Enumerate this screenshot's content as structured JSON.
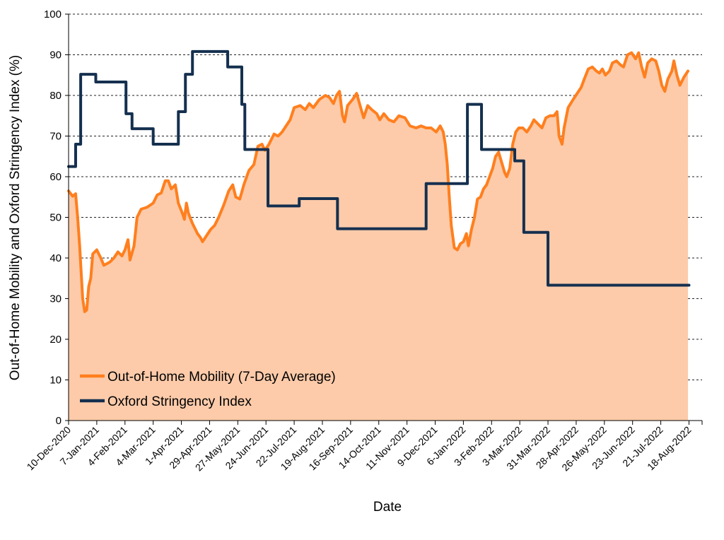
{
  "chart_data": {
    "type": "line",
    "xlabel": "Date",
    "ylabel": "Out-of-Home Mobility and Oxford Stringency Index (%)",
    "ylim": [
      0,
      100
    ],
    "yticks": [
      0,
      10,
      20,
      30,
      40,
      50,
      60,
      70,
      80,
      90,
      100
    ],
    "xlim": [
      "2020-12-10",
      "2022-08-31"
    ],
    "x_tick_labels": [
      "10-Dec-2020",
      "7-Jan-2021",
      "4-Feb-2021",
      "4-Mar-2021",
      "1-Apr-2021",
      "29-Apr-2021",
      "27-May-2021",
      "24-Jun-2021",
      "22-Jul-2021",
      "19-Aug-2021",
      "16-Sep-2021",
      "14-Oct-2021",
      "11-Nov-2021",
      "9-Dec-2021",
      "6-Jan-2022",
      "3-Feb-2022",
      "3-Mar-2022",
      "31-Mar-2022",
      "28-Apr-2022",
      "26-May-2022",
      "23-Jun-2022",
      "21-Jul-2022",
      "18-Aug-2022"
    ],
    "grid": "horizontal",
    "legend_position": "bottom-left",
    "series": [
      {
        "name": "Out-of-Home Mobility (7-Day Average)",
        "style": "filled-area",
        "color": "#FF7F1E",
        "fill": "#FDCBAA",
        "points": [
          [
            "2020-12-10",
            56.5
          ],
          [
            "2020-12-14",
            55.2
          ],
          [
            "2020-12-17",
            55.8
          ],
          [
            "2020-12-19",
            50
          ],
          [
            "2020-12-21",
            43
          ],
          [
            "2020-12-24",
            30
          ],
          [
            "2020-12-26",
            26.8
          ],
          [
            "2020-12-28",
            27.2
          ],
          [
            "2020-12-30",
            33
          ],
          [
            "2021-01-01",
            35
          ],
          [
            "2021-01-03",
            41
          ],
          [
            "2021-01-07",
            42
          ],
          [
            "2021-01-11",
            40
          ],
          [
            "2021-01-14",
            38.2
          ],
          [
            "2021-01-20",
            39
          ],
          [
            "2021-01-24",
            40
          ],
          [
            "2021-01-28",
            41.5
          ],
          [
            "2021-02-01",
            40.5
          ],
          [
            "2021-02-04",
            42
          ],
          [
            "2021-02-07",
            44.5
          ],
          [
            "2021-02-09",
            39.5
          ],
          [
            "2021-02-13",
            43
          ],
          [
            "2021-02-16",
            50
          ],
          [
            "2021-02-20",
            52
          ],
          [
            "2021-02-26",
            52.5
          ],
          [
            "2021-03-04",
            53.5
          ],
          [
            "2021-03-08",
            55.5
          ],
          [
            "2021-03-12",
            56
          ],
          [
            "2021-03-16",
            59
          ],
          [
            "2021-03-19",
            59
          ],
          [
            "2021-03-22",
            57
          ],
          [
            "2021-03-26",
            58
          ],
          [
            "2021-03-29",
            53.5
          ],
          [
            "2021-04-02",
            51
          ],
          [
            "2021-04-04",
            49.5
          ],
          [
            "2021-04-06",
            53.5
          ],
          [
            "2021-04-08",
            51
          ],
          [
            "2021-04-12",
            48.5
          ],
          [
            "2021-04-17",
            46
          ],
          [
            "2021-04-20",
            45
          ],
          [
            "2021-04-22",
            44
          ],
          [
            "2021-04-26",
            45.5
          ],
          [
            "2021-04-30",
            47
          ],
          [
            "2021-05-04",
            48
          ],
          [
            "2021-05-08",
            50
          ],
          [
            "2021-05-13",
            53
          ],
          [
            "2021-05-18",
            56.5
          ],
          [
            "2021-05-22",
            58
          ],
          [
            "2021-05-25",
            55
          ],
          [
            "2021-05-29",
            54.5
          ],
          [
            "2021-06-02",
            58
          ],
          [
            "2021-06-07",
            61.5
          ],
          [
            "2021-06-12",
            63
          ],
          [
            "2021-06-16",
            67.5
          ],
          [
            "2021-06-20",
            68
          ],
          [
            "2021-06-23",
            66.5
          ],
          [
            "2021-06-27",
            68
          ],
          [
            "2021-07-02",
            70.5
          ],
          [
            "2021-07-06",
            70
          ],
          [
            "2021-07-10",
            71
          ],
          [
            "2021-07-14",
            72.5
          ],
          [
            "2021-07-18",
            74
          ],
          [
            "2021-07-22",
            77
          ],
          [
            "2021-07-28",
            77.5
          ],
          [
            "2021-08-02",
            76.5
          ],
          [
            "2021-08-06",
            78
          ],
          [
            "2021-08-10",
            77
          ],
          [
            "2021-08-16",
            79
          ],
          [
            "2021-08-22",
            80
          ],
          [
            "2021-08-26",
            79.5
          ],
          [
            "2021-08-30",
            78
          ],
          [
            "2021-09-02",
            80
          ],
          [
            "2021-09-05",
            81
          ],
          [
            "2021-09-08",
            75
          ],
          [
            "2021-09-10",
            73.5
          ],
          [
            "2021-09-13",
            77.5
          ],
          [
            "2021-09-18",
            79
          ],
          [
            "2021-09-22",
            80.5
          ],
          [
            "2021-09-26",
            77
          ],
          [
            "2021-09-29",
            74.5
          ],
          [
            "2021-10-03",
            77.5
          ],
          [
            "2021-10-07",
            76.5
          ],
          [
            "2021-10-12",
            75.5
          ],
          [
            "2021-10-15",
            74
          ],
          [
            "2021-10-19",
            75.5
          ],
          [
            "2021-10-24",
            74
          ],
          [
            "2021-10-29",
            73.5
          ],
          [
            "2021-11-03",
            75
          ],
          [
            "2021-11-09",
            74.5
          ],
          [
            "2021-11-14",
            72.5
          ],
          [
            "2021-11-20",
            72
          ],
          [
            "2021-11-25",
            72.5
          ],
          [
            "2021-11-30",
            72
          ],
          [
            "2021-12-05",
            72
          ],
          [
            "2021-12-10",
            71
          ],
          [
            "2021-12-14",
            72.5
          ],
          [
            "2021-12-17",
            71
          ],
          [
            "2021-12-19",
            68
          ],
          [
            "2021-12-21",
            63
          ],
          [
            "2021-12-23",
            55
          ],
          [
            "2021-12-25",
            48
          ],
          [
            "2021-12-28",
            42.5
          ],
          [
            "2021-12-31",
            42
          ],
          [
            "2022-01-03",
            43.5
          ],
          [
            "2022-01-06",
            44
          ],
          [
            "2022-01-09",
            46
          ],
          [
            "2022-01-11",
            43
          ],
          [
            "2022-01-14",
            47
          ],
          [
            "2022-01-17",
            50
          ],
          [
            "2022-01-20",
            54.5
          ],
          [
            "2022-01-23",
            55
          ],
          [
            "2022-01-26",
            57
          ],
          [
            "2022-01-29",
            58
          ],
          [
            "2022-02-01",
            60
          ],
          [
            "2022-02-04",
            62
          ],
          [
            "2022-02-07",
            65
          ],
          [
            "2022-02-10",
            66
          ],
          [
            "2022-02-13",
            63.5
          ],
          [
            "2022-02-16",
            61
          ],
          [
            "2022-02-18",
            60
          ],
          [
            "2022-02-21",
            62
          ],
          [
            "2022-02-24",
            68
          ],
          [
            "2022-02-27",
            71
          ],
          [
            "2022-03-02",
            72
          ],
          [
            "2022-03-06",
            72
          ],
          [
            "2022-03-10",
            71
          ],
          [
            "2022-03-14",
            72.5
          ],
          [
            "2022-03-17",
            74
          ],
          [
            "2022-03-21",
            73
          ],
          [
            "2022-03-25",
            72
          ],
          [
            "2022-03-29",
            74.5
          ],
          [
            "2022-04-02",
            75
          ],
          [
            "2022-04-06",
            75
          ],
          [
            "2022-04-09",
            76
          ],
          [
            "2022-04-11",
            70
          ],
          [
            "2022-04-14",
            68
          ],
          [
            "2022-04-16",
            72
          ],
          [
            "2022-04-20",
            77
          ],
          [
            "2022-04-25",
            79
          ],
          [
            "2022-04-29",
            80.5
          ],
          [
            "2022-05-03",
            82
          ],
          [
            "2022-05-06",
            84
          ],
          [
            "2022-05-10",
            86.5
          ],
          [
            "2022-05-14",
            87
          ],
          [
            "2022-05-18",
            86
          ],
          [
            "2022-05-21",
            85.5
          ],
          [
            "2022-05-24",
            86.5
          ],
          [
            "2022-05-27",
            85
          ],
          [
            "2022-05-31",
            86
          ],
          [
            "2022-06-03",
            88
          ],
          [
            "2022-06-07",
            88.5
          ],
          [
            "2022-06-11",
            87.5
          ],
          [
            "2022-06-14",
            87
          ],
          [
            "2022-06-18",
            90
          ],
          [
            "2022-06-22",
            90.5
          ],
          [
            "2022-06-26",
            89
          ],
          [
            "2022-06-29",
            90.5
          ],
          [
            "2022-07-02",
            87
          ],
          [
            "2022-07-05",
            84.5
          ],
          [
            "2022-07-08",
            88
          ],
          [
            "2022-07-12",
            89
          ],
          [
            "2022-07-16",
            88.5
          ],
          [
            "2022-07-19",
            86
          ],
          [
            "2022-07-22",
            82.5
          ],
          [
            "2022-07-25",
            81
          ],
          [
            "2022-07-28",
            84
          ],
          [
            "2022-08-01",
            86
          ],
          [
            "2022-08-03",
            88.5
          ],
          [
            "2022-08-06",
            85
          ],
          [
            "2022-08-09",
            82.5
          ],
          [
            "2022-08-13",
            84.5
          ],
          [
            "2022-08-17",
            86
          ]
        ]
      },
      {
        "name": "Oxford Stringency Index",
        "style": "step-line",
        "color": "#15304F",
        "points": [
          [
            "2020-12-10",
            62.5
          ],
          [
            "2020-12-17",
            68
          ],
          [
            "2020-12-22",
            85.2
          ],
          [
            "2021-01-06",
            83.3
          ],
          [
            "2021-02-05",
            75.5
          ],
          [
            "2021-02-11",
            71.8
          ],
          [
            "2021-03-04",
            68
          ],
          [
            "2021-03-29",
            76
          ],
          [
            "2021-04-05",
            85.2
          ],
          [
            "2021-04-12",
            90.8
          ],
          [
            "2021-05-17",
            87
          ],
          [
            "2021-05-31",
            77.8
          ],
          [
            "2021-06-03",
            66.7
          ],
          [
            "2021-06-26",
            52.8
          ],
          [
            "2021-07-27",
            54.6
          ],
          [
            "2021-09-03",
            47.2
          ],
          [
            "2021-11-30",
            58.3
          ],
          [
            "2022-01-10",
            77.8
          ],
          [
            "2022-01-24",
            66.7
          ],
          [
            "2022-02-26",
            63.9
          ],
          [
            "2022-03-07",
            46.3
          ],
          [
            "2022-03-31",
            33.3
          ],
          [
            "2022-08-18",
            33.3
          ]
        ]
      }
    ]
  }
}
